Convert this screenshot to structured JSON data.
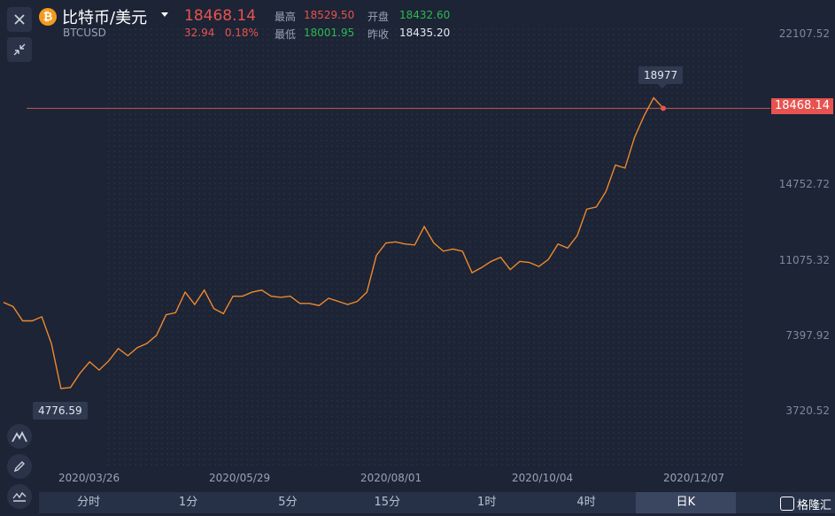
{
  "header": {
    "title": "比特币/美元",
    "symbol": "BTCUSD",
    "last_price": "18468.14",
    "change": "32.94",
    "change_pct": "0.18%",
    "high_label": "最高",
    "high_value": "18529.50",
    "low_label": "最低",
    "low_value": "18001.95",
    "open_label": "开盘",
    "open_value": "18432.60",
    "prev_close_label": "昨收",
    "prev_close_value": "18435.20"
  },
  "tools": {
    "close_icon": "close-icon",
    "collapse_icon": "collapse-icon",
    "indicator_icon": "mountain-icon",
    "draw_icon": "pencil-icon",
    "wave_icon": "wave-icon"
  },
  "price_tag": "18468.14",
  "annotations": {
    "high": "18977",
    "low": "4776.59"
  },
  "tabs": [
    "分时",
    "1分",
    "5分",
    "15分",
    "1时",
    "4时",
    "日K"
  ],
  "active_tab": "日K",
  "brand": "格隆汇",
  "colors": {
    "background": "#1c2436",
    "line": "#f0882c",
    "up": "#e8534f",
    "down": "#2fb84e"
  },
  "chart_data": {
    "type": "line",
    "y_ticks": [
      "22107.52",
      "14752.72",
      "11075.32",
      "7397.92",
      "3720.52"
    ],
    "x_ticks": [
      "2020/03/26",
      "2020/05/29",
      "2020/08/01",
      "2020/10/04",
      "2020/12/07"
    ],
    "ylim": [
      1800,
      23800
    ],
    "ref_price": 18468.14,
    "values": [
      9000,
      8800,
      8100,
      8100,
      8300,
      7000,
      4800,
      4850,
      5550,
      6100,
      5700,
      6150,
      6750,
      6400,
      6800,
      7000,
      7400,
      8400,
      8500,
      9500,
      8900,
      9600,
      8700,
      8450,
      9300,
      9300,
      9500,
      9600,
      9300,
      9250,
      9300,
      8950,
      8950,
      8850,
      9200,
      9050,
      8900,
      9050,
      9500,
      11300,
      11900,
      11950,
      11850,
      11800,
      12700,
      11900,
      11500,
      11600,
      11500,
      10450,
      10700,
      11000,
      11200,
      10600,
      11000,
      10950,
      10750,
      11100,
      11850,
      11650,
      12250,
      13550,
      13650,
      14400,
      15700,
      15550,
      17050,
      18100,
      18977,
      18468.14
    ]
  }
}
